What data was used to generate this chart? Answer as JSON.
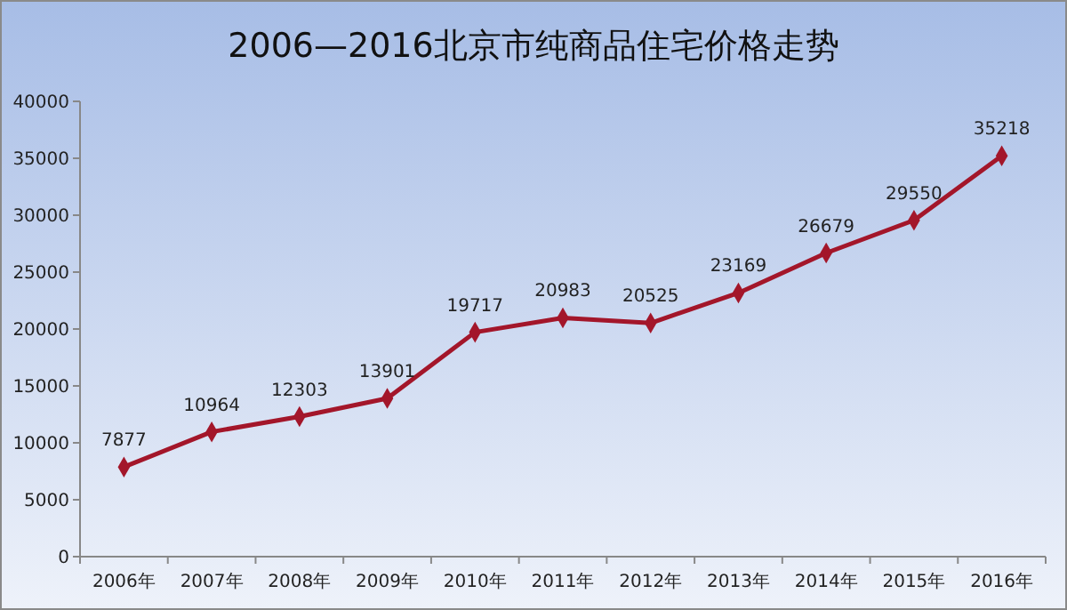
{
  "chart_data": {
    "type": "line",
    "title": "2006—2016北京市纯商品住宅价格走势",
    "categories": [
      "2006年",
      "2007年",
      "2008年",
      "2009年",
      "2010年",
      "2011年",
      "2012年",
      "2013年",
      "2014年",
      "2015年",
      "2016年"
    ],
    "series": [
      {
        "color": "#a3162a",
        "values": [
          7877,
          10964,
          12303,
          13901,
          19717,
          20983,
          20525,
          23169,
          26679,
          29550,
          35218
        ]
      }
    ],
    "ylim": [
      0,
      40000
    ],
    "yticks": [
      0,
      5000,
      10000,
      15000,
      20000,
      25000,
      30000,
      35000,
      40000
    ],
    "grid": false,
    "marker": "diamond",
    "line_style": "solid",
    "data_labels": true
  }
}
